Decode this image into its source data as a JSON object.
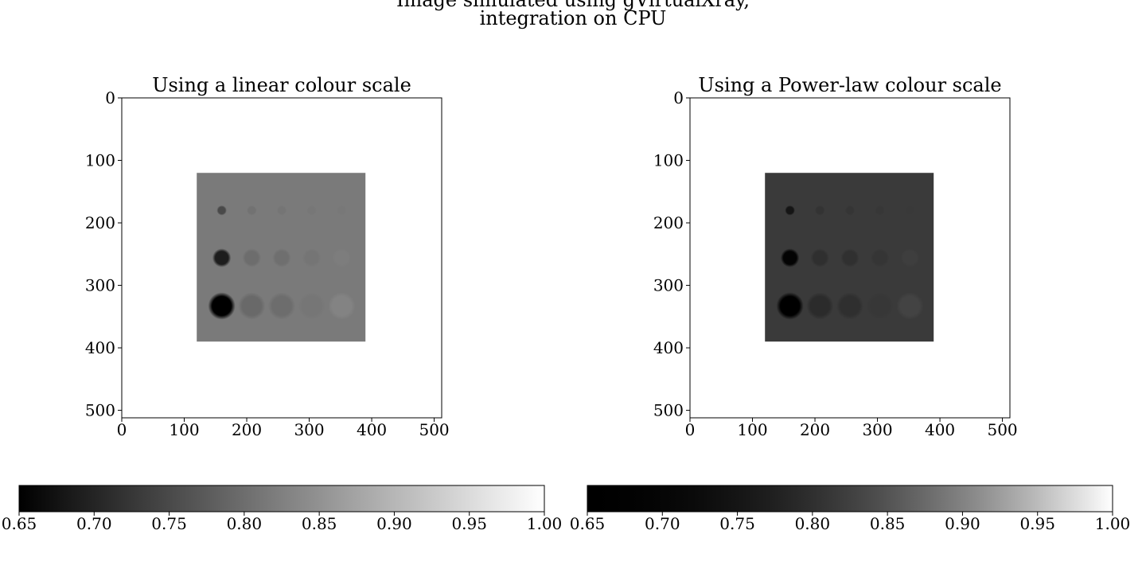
{
  "figure": {
    "title_line1": "Image simulated using gVirtualXray,",
    "title_line2": "integration on CPU"
  },
  "chart_data": [
    {
      "type": "heatmap",
      "title": "Using a linear colour scale",
      "colour_scale": "linear",
      "x_ticks": [
        0,
        100,
        200,
        300,
        400,
        500
      ],
      "y_ticks": [
        0,
        100,
        200,
        300,
        400,
        500
      ],
      "xlim": [
        0,
        512
      ],
      "ylim": [
        512,
        0
      ],
      "background_value": 1.0,
      "phantom": {
        "x_range": [
          120,
          390
        ],
        "y_range": [
          120,
          390
        ],
        "value": 0.817,
        "cmap": "gray"
      },
      "inserts": [
        {
          "x": 160,
          "y": 180,
          "radius": 7,
          "value": 0.75
        },
        {
          "x": 208,
          "y": 180,
          "radius": 7,
          "value": 0.806
        },
        {
          "x": 256,
          "y": 180,
          "radius": 7,
          "value": 0.81
        },
        {
          "x": 304,
          "y": 180,
          "radius": 7,
          "value": 0.813
        },
        {
          "x": 352,
          "y": 180,
          "radius": 7,
          "value": 0.815
        },
        {
          "x": 160,
          "y": 256,
          "radius": 13,
          "value": 0.69
        },
        {
          "x": 208,
          "y": 256,
          "radius": 13,
          "value": 0.8
        },
        {
          "x": 256,
          "y": 256,
          "radius": 13,
          "value": 0.802
        },
        {
          "x": 304,
          "y": 256,
          "radius": 13,
          "value": 0.81
        },
        {
          "x": 352,
          "y": 256,
          "radius": 13,
          "value": 0.822
        },
        {
          "x": 160,
          "y": 333,
          "radius": 19,
          "value": 0.65
        },
        {
          "x": 208,
          "y": 333,
          "radius": 19,
          "value": 0.794
        },
        {
          "x": 256,
          "y": 333,
          "radius": 19,
          "value": 0.8
        },
        {
          "x": 304,
          "y": 333,
          "radius": 19,
          "value": 0.812
        },
        {
          "x": 352,
          "y": 333,
          "radius": 19,
          "value": 0.83
        }
      ],
      "colorbar": {
        "min": 0.65,
        "max": 1.0,
        "ticks": [
          0.65,
          0.7,
          0.75,
          0.8,
          0.85,
          0.9,
          0.95,
          1.0
        ],
        "tick_labels": [
          "0.65",
          "0.70",
          "0.75",
          "0.80",
          "0.85",
          "0.90",
          "0.95",
          "1.00"
        ],
        "orientation": "horizontal"
      }
    },
    {
      "type": "heatmap",
      "title": "Using a Power-law colour scale",
      "colour_scale": "power-law",
      "gamma": 2.0,
      "x_ticks": [
        0,
        100,
        200,
        300,
        400,
        500
      ],
      "y_ticks": [
        0,
        100,
        200,
        300,
        400,
        500
      ],
      "xlim": [
        0,
        512
      ],
      "ylim": [
        512,
        0
      ],
      "background_value": 1.0,
      "phantom": {
        "x_range": [
          120,
          390
        ],
        "y_range": [
          120,
          390
        ],
        "value": 0.817,
        "cmap": "gray"
      },
      "inserts": [
        {
          "x": 160,
          "y": 180,
          "radius": 7,
          "value": 0.75
        },
        {
          "x": 208,
          "y": 180,
          "radius": 7,
          "value": 0.806
        },
        {
          "x": 256,
          "y": 180,
          "radius": 7,
          "value": 0.81
        },
        {
          "x": 304,
          "y": 180,
          "radius": 7,
          "value": 0.813
        },
        {
          "x": 352,
          "y": 180,
          "radius": 7,
          "value": 0.815
        },
        {
          "x": 160,
          "y": 256,
          "radius": 13,
          "value": 0.69
        },
        {
          "x": 208,
          "y": 256,
          "radius": 13,
          "value": 0.8
        },
        {
          "x": 256,
          "y": 256,
          "radius": 13,
          "value": 0.802
        },
        {
          "x": 304,
          "y": 256,
          "radius": 13,
          "value": 0.81
        },
        {
          "x": 352,
          "y": 256,
          "radius": 13,
          "value": 0.822
        },
        {
          "x": 160,
          "y": 333,
          "radius": 19,
          "value": 0.65
        },
        {
          "x": 208,
          "y": 333,
          "radius": 19,
          "value": 0.794
        },
        {
          "x": 256,
          "y": 333,
          "radius": 19,
          "value": 0.8
        },
        {
          "x": 304,
          "y": 333,
          "radius": 19,
          "value": 0.812
        },
        {
          "x": 352,
          "y": 333,
          "radius": 19,
          "value": 0.83
        }
      ],
      "colorbar": {
        "min": 0.65,
        "max": 1.0,
        "ticks": [
          0.65,
          0.7,
          0.75,
          0.8,
          0.85,
          0.9,
          0.95,
          1.0
        ],
        "tick_labels": [
          "0.65",
          "0.70",
          "0.75",
          "0.80",
          "0.85",
          "0.90",
          "0.95",
          "1.00"
        ],
        "orientation": "horizontal"
      }
    }
  ]
}
